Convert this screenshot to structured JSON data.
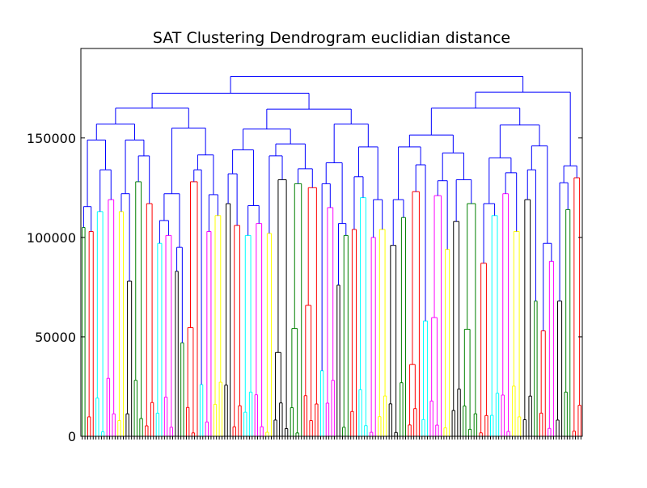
{
  "chart_data": {
    "type": "dendrogram",
    "title": "SAT Clustering Dendrogram euclidian distance",
    "xlabel": "",
    "ylabel": "",
    "ylim": [
      0,
      195000
    ],
    "y_ticks": [
      0,
      50000,
      100000,
      150000
    ],
    "y_tick_labels": [
      "0",
      "50000",
      "100000",
      "150000"
    ],
    "leaf_count": 250,
    "grid": false,
    "color_cycle": [
      "#00ff00",
      "#ff0000",
      "#00ffff",
      "#ff00ff",
      "#ffff00",
      "#000000",
      "#008000"
    ],
    "above_threshold_color": "#0000ff",
    "clusters": [
      {
        "color": "#008000",
        "leaves": 2,
        "height": 105000
      },
      {
        "color": "#ff0000",
        "leaves": 3,
        "height": 103000
      },
      {
        "color": "#00ffff",
        "leaves": 4,
        "height": 113000
      },
      {
        "color": "#ff00ff",
        "leaves": 4,
        "height": 119000
      },
      {
        "color": "#ffff00",
        "leaves": 3,
        "height": 113000
      },
      {
        "color": "#000000",
        "leaves": 3,
        "height": 78000
      },
      {
        "color": "#008000",
        "leaves": 4,
        "height": 128000
      },
      {
        "color": "#ff0000",
        "leaves": 4,
        "height": 117000
      },
      {
        "color": "#00ffff",
        "leaves": 3,
        "height": 97000
      },
      {
        "color": "#ff00ff",
        "leaves": 4,
        "height": 101000
      },
      {
        "color": "#000000",
        "leaves": 2,
        "height": 83000
      },
      {
        "color": "#008000",
        "leaves": 2,
        "height": 47000
      },
      {
        "color": "#ff0000",
        "leaves": 5,
        "height": 128000
      },
      {
        "color": "#00ffff",
        "leaves": 2,
        "height": 26000
      },
      {
        "color": "#ff00ff",
        "leaves": 3,
        "height": 103000
      },
      {
        "color": "#ffff00",
        "leaves": 4,
        "height": 111000
      },
      {
        "color": "#000000",
        "leaves": 3,
        "height": 117000
      },
      {
        "color": "#ff0000",
        "leaves": 4,
        "height": 106000
      },
      {
        "color": "#00ffff",
        "leaves": 4,
        "height": 101000
      },
      {
        "color": "#ff00ff",
        "leaves": 4,
        "height": 107000
      },
      {
        "color": "#ffff00",
        "leaves": 3,
        "height": 102000
      },
      {
        "color": "#000000",
        "leaves": 6,
        "height": 129000
      },
      {
        "color": "#008000",
        "leaves": 5,
        "height": 127000
      },
      {
        "color": "#ff0000",
        "leaves": 6,
        "height": 125000
      },
      {
        "color": "#00ffff",
        "leaves": 2,
        "height": 33000
      },
      {
        "color": "#ff00ff",
        "leaves": 4,
        "height": 115000
      },
      {
        "color": "#000000",
        "leaves": 2,
        "height": 76000
      },
      {
        "color": "#008000",
        "leaves": 3,
        "height": 101000
      },
      {
        "color": "#ff0000",
        "leaves": 3,
        "height": 104000
      },
      {
        "color": "#00ffff",
        "leaves": 4,
        "height": 120000
      },
      {
        "color": "#ff00ff",
        "leaves": 3,
        "height": 100000
      },
      {
        "color": "#ffff00",
        "leaves": 4,
        "height": 104000
      },
      {
        "color": "#000000",
        "leaves": 4,
        "height": 96000
      },
      {
        "color": "#008000",
        "leaves": 3,
        "height": 110000
      },
      {
        "color": "#ff0000",
        "leaves": 5,
        "height": 123000
      },
      {
        "color": "#00ffff",
        "leaves": 3,
        "height": 58000
      },
      {
        "color": "#ff00ff",
        "leaves": 5,
        "height": 121000
      },
      {
        "color": "#ffff00",
        "leaves": 3,
        "height": 94000
      },
      {
        "color": "#000000",
        "leaves": 4,
        "height": 108000
      },
      {
        "color": "#008000",
        "leaves": 6,
        "height": 117000
      },
      {
        "color": "#ff0000",
        "leaves": 4,
        "height": 87000
      },
      {
        "color": "#00ffff",
        "leaves": 4,
        "height": 111000
      },
      {
        "color": "#ff00ff",
        "leaves": 4,
        "height": 122000
      },
      {
        "color": "#ffff00",
        "leaves": 4,
        "height": 103000
      },
      {
        "color": "#000000",
        "leaves": 4,
        "height": 119000
      },
      {
        "color": "#008000",
        "leaves": 2,
        "height": 68000
      },
      {
        "color": "#ff0000",
        "leaves": 3,
        "height": 53000
      },
      {
        "color": "#ff00ff",
        "leaves": 3,
        "height": 88000
      },
      {
        "color": "#000000",
        "leaves": 3,
        "height": 68000
      },
      {
        "color": "#008000",
        "leaves": 3,
        "height": 114000
      },
      {
        "color": "#ff0000",
        "leaves": 4,
        "height": 130000
      }
    ]
  }
}
